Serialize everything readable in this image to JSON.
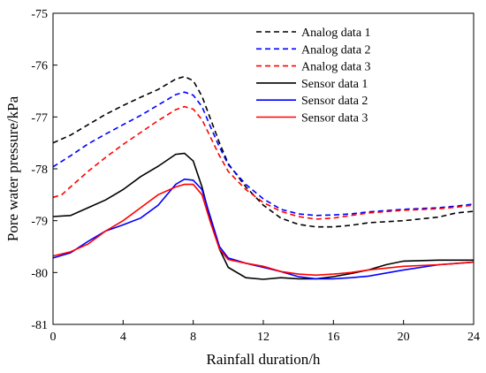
{
  "chart_data": {
    "type": "line",
    "title": "",
    "xlabel": "Rainfall duration/h",
    "ylabel": "Pore water pressure/kPa",
    "xlim": [
      0,
      24
    ],
    "ylim": [
      -81,
      -75
    ],
    "xticks": [
      0,
      4,
      8,
      12,
      16,
      20,
      24
    ],
    "yticks": [
      -75,
      -76,
      -77,
      -78,
      -79,
      -80,
      -81
    ],
    "grid": false,
    "legend_position": "top-right",
    "series": [
      {
        "name": "Analog data 1",
        "color": "#000000",
        "dash": "dashed",
        "x": [
          0,
          1,
          2,
          3,
          4,
          5,
          6,
          7,
          7.5,
          8,
          8.5,
          9,
          9.5,
          10,
          11,
          12,
          13,
          14,
          15,
          16,
          17,
          18,
          20,
          22,
          23,
          24
        ],
        "y": [
          -77.5,
          -77.35,
          -77.15,
          -76.95,
          -76.78,
          -76.62,
          -76.47,
          -76.27,
          -76.22,
          -76.3,
          -76.6,
          -77.05,
          -77.5,
          -77.9,
          -78.35,
          -78.7,
          -78.95,
          -79.07,
          -79.12,
          -79.12,
          -79.09,
          -79.04,
          -79.0,
          -78.93,
          -78.85,
          -78.82
        ]
      },
      {
        "name": "Analog data 2",
        "color": "#0000ff",
        "dash": "dashed",
        "x": [
          0,
          1,
          2,
          3,
          4,
          5,
          6,
          7,
          7.5,
          8,
          8.5,
          9,
          9.5,
          10,
          11,
          12,
          13,
          14,
          15,
          16,
          17,
          18,
          20,
          22,
          23,
          24
        ],
        "y": [
          -77.96,
          -77.75,
          -77.52,
          -77.33,
          -77.15,
          -76.97,
          -76.77,
          -76.57,
          -76.52,
          -76.58,
          -76.8,
          -77.2,
          -77.58,
          -77.92,
          -78.3,
          -78.58,
          -78.78,
          -78.87,
          -78.9,
          -78.89,
          -78.87,
          -78.83,
          -78.78,
          -78.75,
          -78.72,
          -78.68
        ]
      },
      {
        "name": "Analog data 3",
        "color": "#ff0000",
        "dash": "dashed",
        "x": [
          0,
          0.5,
          1,
          2,
          3,
          4,
          5,
          6,
          7,
          7.5,
          8,
          8.5,
          9,
          9.5,
          10,
          11,
          12,
          13,
          14,
          15,
          16,
          17,
          18,
          20,
          22,
          23,
          24
        ],
        "y": [
          -78.55,
          -78.5,
          -78.35,
          -78.05,
          -77.78,
          -77.53,
          -77.3,
          -77.07,
          -76.86,
          -76.8,
          -76.85,
          -77.05,
          -77.4,
          -77.75,
          -78.05,
          -78.4,
          -78.65,
          -78.82,
          -78.92,
          -78.97,
          -78.95,
          -78.9,
          -78.85,
          -78.8,
          -78.77,
          -78.74,
          -78.7
        ]
      },
      {
        "name": "Sensor data 1",
        "color": "#000000",
        "dash": "solid",
        "x": [
          0,
          1,
          2,
          3,
          4,
          5,
          6,
          7,
          7.5,
          8,
          8.5,
          9,
          9.5,
          10,
          11,
          12,
          13,
          14,
          15,
          16,
          17,
          18,
          19,
          20,
          22,
          24
        ],
        "y": [
          -78.92,
          -78.9,
          -78.75,
          -78.6,
          -78.4,
          -78.15,
          -77.95,
          -77.72,
          -77.7,
          -77.85,
          -78.35,
          -79.0,
          -79.55,
          -79.9,
          -80.1,
          -80.13,
          -80.1,
          -80.12,
          -80.12,
          -80.08,
          -80.02,
          -79.95,
          -79.85,
          -79.78,
          -79.76,
          -79.76
        ]
      },
      {
        "name": "Sensor data 2",
        "color": "#0000ff",
        "dash": "solid",
        "x": [
          0,
          1,
          2,
          3,
          4,
          5,
          6,
          7,
          7.5,
          8,
          8.5,
          9,
          9.5,
          10,
          11,
          12,
          13,
          14,
          15,
          16,
          17,
          18,
          20,
          22,
          24
        ],
        "y": [
          -79.72,
          -79.62,
          -79.4,
          -79.2,
          -79.08,
          -78.95,
          -78.7,
          -78.3,
          -78.2,
          -78.22,
          -78.4,
          -78.95,
          -79.5,
          -79.72,
          -79.82,
          -79.9,
          -79.98,
          -80.08,
          -80.12,
          -80.12,
          -80.1,
          -80.07,
          -79.95,
          -79.85,
          -79.8
        ]
      },
      {
        "name": "Sensor data 3",
        "color": "#ff0000",
        "dash": "solid",
        "x": [
          0,
          1,
          2,
          3,
          4,
          5,
          6,
          7,
          7.5,
          8,
          8.5,
          9,
          9.5,
          10,
          11,
          12,
          13,
          14,
          15,
          16,
          17,
          18,
          20,
          22,
          24
        ],
        "y": [
          -79.68,
          -79.6,
          -79.45,
          -79.2,
          -79.0,
          -78.75,
          -78.5,
          -78.35,
          -78.3,
          -78.3,
          -78.5,
          -79.05,
          -79.55,
          -79.75,
          -79.82,
          -79.88,
          -79.98,
          -80.03,
          -80.05,
          -80.03,
          -80.0,
          -79.95,
          -79.88,
          -79.85,
          -79.8
        ]
      }
    ]
  }
}
